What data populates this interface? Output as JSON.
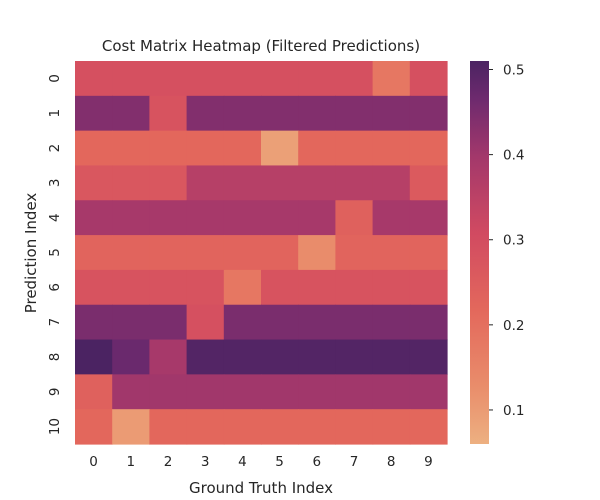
{
  "chart_data": {
    "type": "heatmap",
    "title": "Cost Matrix Heatmap (Filtered Predictions)",
    "xlabel": "Ground Truth Index",
    "ylabel": "Prediction Index",
    "x_categories": [
      "0",
      "1",
      "2",
      "3",
      "4",
      "5",
      "6",
      "7",
      "8",
      "9"
    ],
    "y_categories": [
      "0",
      "1",
      "2",
      "3",
      "4",
      "5",
      "6",
      "7",
      "8",
      "9",
      "10"
    ],
    "values": [
      [
        0.29,
        0.29,
        0.29,
        0.29,
        0.29,
        0.29,
        0.29,
        0.29,
        0.18,
        0.29
      ],
      [
        0.44,
        0.44,
        0.28,
        0.44,
        0.44,
        0.44,
        0.44,
        0.44,
        0.44,
        0.44
      ],
      [
        0.22,
        0.22,
        0.22,
        0.22,
        0.22,
        0.09,
        0.22,
        0.22,
        0.22,
        0.22
      ],
      [
        0.27,
        0.27,
        0.27,
        0.36,
        0.36,
        0.36,
        0.36,
        0.36,
        0.36,
        0.26
      ],
      [
        0.39,
        0.39,
        0.39,
        0.39,
        0.39,
        0.39,
        0.39,
        0.24,
        0.39,
        0.39
      ],
      [
        0.23,
        0.23,
        0.23,
        0.23,
        0.23,
        0.23,
        0.13,
        0.23,
        0.23,
        0.23
      ],
      [
        0.28,
        0.28,
        0.28,
        0.28,
        0.18,
        0.28,
        0.28,
        0.28,
        0.28,
        0.28
      ],
      [
        0.45,
        0.45,
        0.45,
        0.29,
        0.45,
        0.45,
        0.45,
        0.45,
        0.45,
        0.45
      ],
      [
        0.51,
        0.47,
        0.39,
        0.5,
        0.5,
        0.5,
        0.5,
        0.5,
        0.5,
        0.5
      ],
      [
        0.24,
        0.4,
        0.4,
        0.4,
        0.4,
        0.4,
        0.4,
        0.4,
        0.4,
        0.4
      ],
      [
        0.22,
        0.1,
        0.22,
        0.22,
        0.22,
        0.22,
        0.22,
        0.22,
        0.22,
        0.22
      ]
    ],
    "colorbar": {
      "range": [
        0.06,
        0.51
      ],
      "ticks": [
        0.1,
        0.2,
        0.3,
        0.4,
        0.5
      ],
      "tick_labels": [
        "0.1",
        "0.2",
        "0.3",
        "0.4",
        "0.5"
      ],
      "colormap": "flare"
    },
    "grid": false
  }
}
